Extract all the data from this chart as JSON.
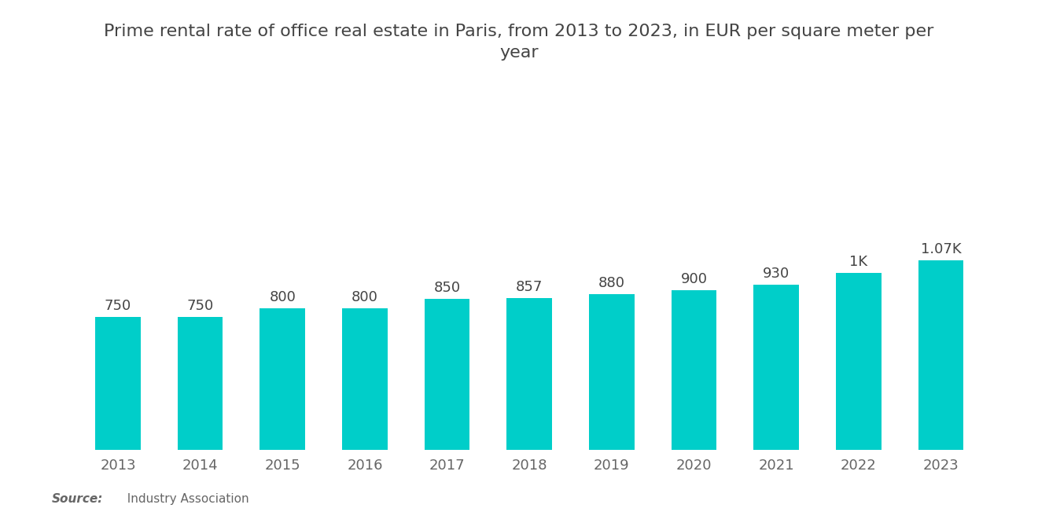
{
  "title_line1": "Prime rental rate of office real estate in Paris, from 2013 to 2023, in EUR per square meter per",
  "title_line2": "year",
  "years": [
    2013,
    2014,
    2015,
    2016,
    2017,
    2018,
    2019,
    2020,
    2021,
    2022,
    2023
  ],
  "values": [
    750,
    750,
    800,
    800,
    850,
    857,
    880,
    900,
    930,
    1000,
    1070
  ],
  "labels": [
    "750",
    "750",
    "800",
    "800",
    "850",
    "857",
    "880",
    "900",
    "930",
    "1K",
    "1.07K"
  ],
  "bar_color": "#00CEC9",
  "background_color": "#ffffff",
  "title_fontsize": 16,
  "label_fontsize": 13,
  "tick_fontsize": 13,
  "source_bold": "Source:",
  "source_normal": "  Industry Association",
  "ylim": [
    0,
    1800
  ],
  "bar_width": 0.55
}
